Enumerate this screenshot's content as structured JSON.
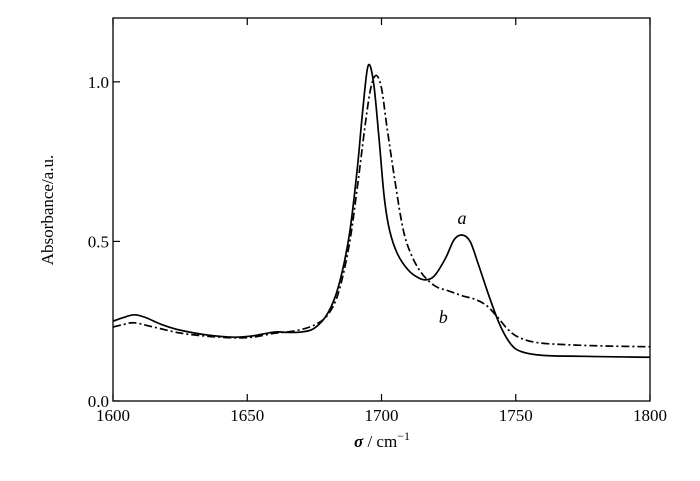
{
  "chart_data": {
    "type": "line",
    "title": "",
    "xlabel": {
      "symbol": "σ",
      "unit": "cm",
      "exponent": "−1"
    },
    "ylabel": "Absorbance/a.u.",
    "xlim": [
      1600,
      1800
    ],
    "ylim": [
      0.0,
      1.2
    ],
    "x_ticks": [
      1600,
      1650,
      1700,
      1750,
      1800
    ],
    "x_tick_labels": [
      "1600",
      "1650",
      "1700",
      "1750",
      "1800"
    ],
    "y_ticks": [
      0.0,
      0.5,
      1.0
    ],
    "y_tick_labels": [
      "0.0",
      "0.5",
      "1.0"
    ],
    "grid": false,
    "legend": "none",
    "series": [
      {
        "name": "a",
        "line_style": "solid",
        "color": "#000000",
        "label_position": [
          1730,
          0.555
        ],
        "points": [
          [
            1600,
            0.25
          ],
          [
            1604,
            0.262
          ],
          [
            1608,
            0.27
          ],
          [
            1612,
            0.262
          ],
          [
            1618,
            0.24
          ],
          [
            1625,
            0.222
          ],
          [
            1635,
            0.207
          ],
          [
            1645,
            0.2
          ],
          [
            1652,
            0.204
          ],
          [
            1660,
            0.216
          ],
          [
            1665,
            0.215
          ],
          [
            1670,
            0.216
          ],
          [
            1675,
            0.228
          ],
          [
            1680,
            0.275
          ],
          [
            1684,
            0.36
          ],
          [
            1688,
            0.52
          ],
          [
            1691,
            0.73
          ],
          [
            1693,
            0.91
          ],
          [
            1695,
            1.05
          ],
          [
            1697,
            1.0
          ],
          [
            1699,
            0.83
          ],
          [
            1701,
            0.64
          ],
          [
            1703,
            0.535
          ],
          [
            1706,
            0.46
          ],
          [
            1710,
            0.41
          ],
          [
            1714,
            0.385
          ],
          [
            1717,
            0.38
          ],
          [
            1720,
            0.395
          ],
          [
            1724,
            0.45
          ],
          [
            1727,
            0.505
          ],
          [
            1730,
            0.52
          ],
          [
            1733,
            0.5
          ],
          [
            1736,
            0.43
          ],
          [
            1740,
            0.33
          ],
          [
            1744,
            0.24
          ],
          [
            1748,
            0.18
          ],
          [
            1752,
            0.155
          ],
          [
            1760,
            0.143
          ],
          [
            1775,
            0.14
          ],
          [
            1790,
            0.138
          ],
          [
            1800,
            0.137
          ]
        ]
      },
      {
        "name": "b",
        "line_style": "dash-dot",
        "color": "#000000",
        "label_position": [
          1723,
          0.245
        ],
        "points": [
          [
            1600,
            0.232
          ],
          [
            1604,
            0.24
          ],
          [
            1608,
            0.245
          ],
          [
            1615,
            0.232
          ],
          [
            1625,
            0.213
          ],
          [
            1635,
            0.203
          ],
          [
            1645,
            0.198
          ],
          [
            1652,
            0.2
          ],
          [
            1660,
            0.212
          ],
          [
            1668,
            0.22
          ],
          [
            1675,
            0.238
          ],
          [
            1680,
            0.27
          ],
          [
            1684,
            0.34
          ],
          [
            1688,
            0.49
          ],
          [
            1691,
            0.67
          ],
          [
            1694,
            0.87
          ],
          [
            1696,
            0.98
          ],
          [
            1698,
            1.02
          ],
          [
            1700,
            0.98
          ],
          [
            1702,
            0.86
          ],
          [
            1705,
            0.69
          ],
          [
            1708,
            0.54
          ],
          [
            1711,
            0.46
          ],
          [
            1715,
            0.4
          ],
          [
            1720,
            0.36
          ],
          [
            1725,
            0.345
          ],
          [
            1730,
            0.33
          ],
          [
            1735,
            0.318
          ],
          [
            1739,
            0.3
          ],
          [
            1743,
            0.265
          ],
          [
            1747,
            0.225
          ],
          [
            1751,
            0.2
          ],
          [
            1758,
            0.183
          ],
          [
            1770,
            0.176
          ],
          [
            1785,
            0.172
          ],
          [
            1800,
            0.17
          ]
        ]
      }
    ]
  }
}
